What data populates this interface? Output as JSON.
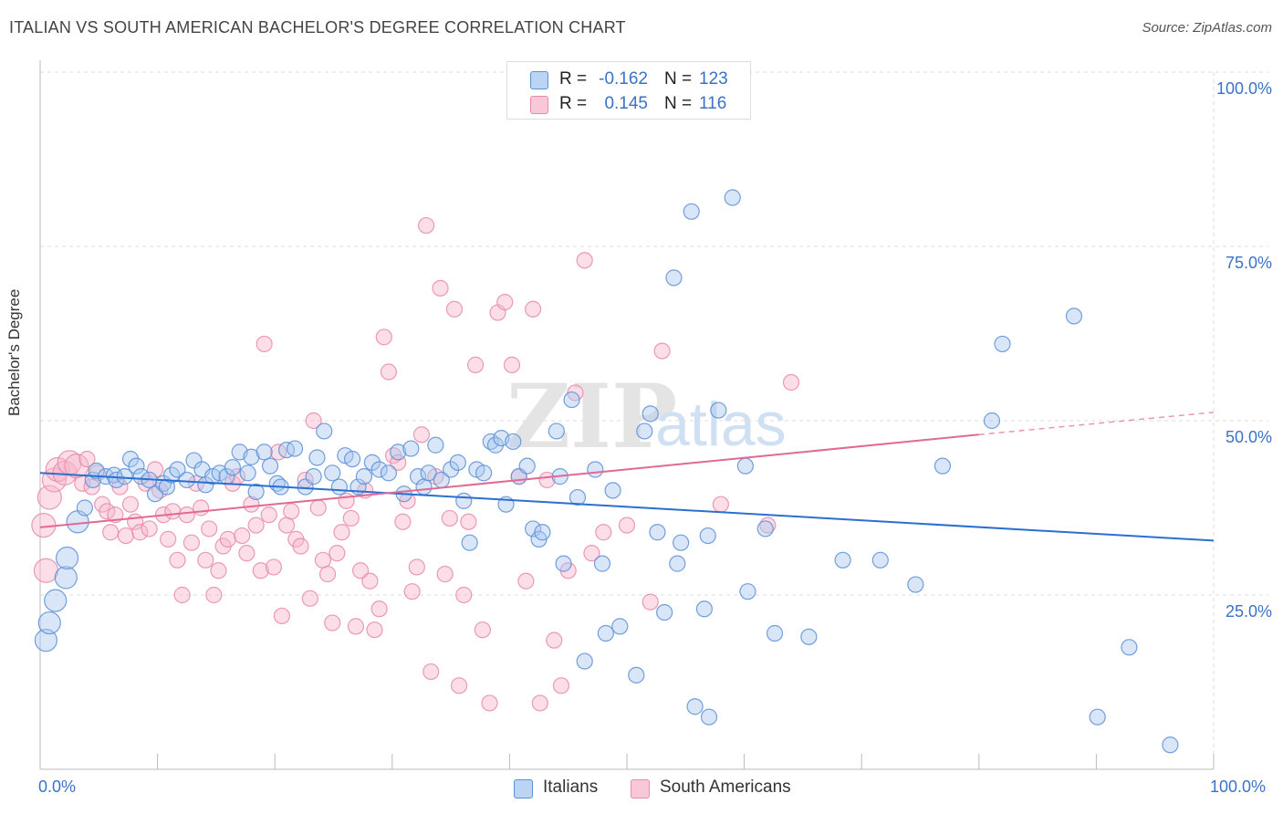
{
  "title": "ITALIAN VS SOUTH AMERICAN BACHELOR'S DEGREE CORRELATION CHART",
  "source": "Source: ZipAtlas.com",
  "watermark": {
    "zip": "ZIP",
    "atlas": "atlas"
  },
  "colors": {
    "italians_fill": "#a8c8f0",
    "italians_stroke": "#5b8fd6",
    "italians_line": "#2b6fd0",
    "south_fill": "#f6b6cb",
    "south_stroke": "#e88aa8",
    "south_line": "#e06a94",
    "tick_text": "#3a72c9",
    "grid": "#dddddd"
  },
  "legend_top": {
    "rows": [
      {
        "r_label": "R =",
        "r_value": "-0.162",
        "n_label": "N =",
        "n_value": "123"
      },
      {
        "r_label": "R =",
        "r_value": "0.145",
        "n_label": "N =",
        "n_value": "116"
      }
    ]
  },
  "legend_bottom": {
    "italians": "Italians",
    "south_americans": "South Americans"
  },
  "axis": {
    "ylabel": "Bachelor's Degree",
    "y_ticks": [
      "100.0%",
      "75.0%",
      "50.0%",
      "25.0%"
    ],
    "x_ticks": [
      "0.0%",
      "100.0%"
    ]
  },
  "chart_data": {
    "type": "scatter",
    "xlabel": "",
    "ylabel": "Bachelor's Degree",
    "xlim": [
      0,
      100
    ],
    "ylim": [
      0,
      100
    ],
    "grid": true,
    "legend_placement": "top-center",
    "series": [
      {
        "name": "Italians",
        "r": -0.162,
        "n": 123,
        "trend": {
          "x": [
            0,
            100
          ],
          "y": [
            42.5,
            32.8
          ]
        },
        "points": [
          [
            0.5,
            18.5
          ],
          [
            0.8,
            21
          ],
          [
            1.3,
            24.2
          ],
          [
            2.2,
            27.5
          ],
          [
            2.3,
            30.3
          ],
          [
            3.2,
            35.5
          ],
          [
            3.8,
            37.5
          ],
          [
            4.5,
            41.5
          ],
          [
            4.8,
            42.8
          ],
          [
            5.6,
            42
          ],
          [
            6.3,
            42.2
          ],
          [
            6.5,
            41.5
          ],
          [
            7.2,
            42
          ],
          [
            7.7,
            44.5
          ],
          [
            8.2,
            43.5
          ],
          [
            8.6,
            42
          ],
          [
            9.3,
            41.5
          ],
          [
            9.8,
            39.5
          ],
          [
            10.5,
            41
          ],
          [
            10.8,
            40.5
          ],
          [
            11.2,
            42.2
          ],
          [
            11.7,
            43
          ],
          [
            12.5,
            41.5
          ],
          [
            13.1,
            44.3
          ],
          [
            13.8,
            43
          ],
          [
            14.1,
            40.8
          ],
          [
            14.7,
            42
          ],
          [
            15.3,
            42.5
          ],
          [
            15.9,
            42
          ],
          [
            16.4,
            43.3
          ],
          [
            17,
            45.5
          ],
          [
            17.7,
            42.5
          ],
          [
            18,
            44.8
          ],
          [
            18.4,
            39.8
          ],
          [
            19.1,
            45.5
          ],
          [
            19.6,
            43.5
          ],
          [
            20.2,
            41
          ],
          [
            20.5,
            40.5
          ],
          [
            21,
            45.8
          ],
          [
            21.7,
            46
          ],
          [
            22.6,
            40.5
          ],
          [
            23.3,
            42
          ],
          [
            23.6,
            44.7
          ],
          [
            24.2,
            48.5
          ],
          [
            24.9,
            42.5
          ],
          [
            25.5,
            40.5
          ],
          [
            26,
            45
          ],
          [
            26.6,
            44.5
          ],
          [
            27.1,
            40.5
          ],
          [
            27.6,
            42
          ],
          [
            28.3,
            44
          ],
          [
            28.9,
            43
          ],
          [
            29.7,
            42.5
          ],
          [
            30.5,
            45.5
          ],
          [
            31,
            39.5
          ],
          [
            31.6,
            46
          ],
          [
            32.2,
            42
          ],
          [
            32.7,
            40.5
          ],
          [
            33.1,
            42.5
          ],
          [
            33.7,
            46.5
          ],
          [
            34.2,
            41.5
          ],
          [
            35,
            43
          ],
          [
            35.6,
            44
          ],
          [
            36.1,
            38.5
          ],
          [
            36.6,
            32.5
          ],
          [
            37.2,
            43
          ],
          [
            37.8,
            42.5
          ],
          [
            38.4,
            47
          ],
          [
            38.8,
            46.5
          ],
          [
            39.3,
            47.5
          ],
          [
            39.7,
            38
          ],
          [
            40.3,
            47
          ],
          [
            40.8,
            42
          ],
          [
            41.5,
            43.5
          ],
          [
            42,
            34.5
          ],
          [
            42.5,
            33
          ],
          [
            42.8,
            34
          ],
          [
            44,
            48.5
          ],
          [
            44.3,
            42
          ],
          [
            44.6,
            29.5
          ],
          [
            45.3,
            53
          ],
          [
            45.8,
            39
          ],
          [
            46.4,
            15.5
          ],
          [
            47.3,
            43
          ],
          [
            47.9,
            29.5
          ],
          [
            48.2,
            19.5
          ],
          [
            48.8,
            40
          ],
          [
            49.4,
            20.5
          ],
          [
            50.8,
            13.5
          ],
          [
            51.5,
            48.5
          ],
          [
            52,
            51
          ],
          [
            52.6,
            34
          ],
          [
            53.2,
            22.5
          ],
          [
            54,
            70.5
          ],
          [
            54.3,
            29.5
          ],
          [
            54.6,
            32.5
          ],
          [
            55.5,
            80
          ],
          [
            55.8,
            9
          ],
          [
            56.6,
            23
          ],
          [
            56.9,
            33.5
          ],
          [
            57,
            7.5
          ],
          [
            57.8,
            51.5
          ],
          [
            59,
            82
          ],
          [
            60.1,
            43.5
          ],
          [
            60.3,
            25.5
          ],
          [
            61.8,
            34.5
          ],
          [
            62.6,
            19.5
          ],
          [
            65.5,
            19
          ],
          [
            68.4,
            30
          ],
          [
            71.6,
            30
          ],
          [
            74.6,
            26.5
          ],
          [
            76.9,
            43.5
          ],
          [
            81.1,
            50
          ],
          [
            82,
            61
          ],
          [
            88.1,
            65
          ],
          [
            90.1,
            7.5
          ],
          [
            92.8,
            17.5
          ],
          [
            96.3,
            3.5
          ]
        ]
      },
      {
        "name": "South Americans",
        "r": 0.145,
        "n": 116,
        "trend": {
          "x": [
            0,
            80
          ],
          "y": [
            34.7,
            48
          ]
        },
        "trend_dashed": {
          "x": [
            80,
            100
          ],
          "y": [
            48,
            51.2
          ]
        },
        "points": [
          [
            0.3,
            35
          ],
          [
            0.5,
            28.5
          ],
          [
            0.8,
            39
          ],
          [
            1.2,
            41.5
          ],
          [
            1.5,
            43
          ],
          [
            2.1,
            42.5
          ],
          [
            2.5,
            44
          ],
          [
            3.1,
            43.5
          ],
          [
            3.6,
            41
          ],
          [
            4,
            44.5
          ],
          [
            4.4,
            40.5
          ],
          [
            4.9,
            42.5
          ],
          [
            5.3,
            38
          ],
          [
            5.7,
            37
          ],
          [
            6,
            34
          ],
          [
            6.4,
            36.5
          ],
          [
            6.8,
            40.5
          ],
          [
            7.3,
            33.5
          ],
          [
            7.7,
            38
          ],
          [
            8.1,
            35.5
          ],
          [
            8.5,
            34
          ],
          [
            9,
            41
          ],
          [
            9.3,
            34.5
          ],
          [
            9.8,
            43
          ],
          [
            10.2,
            40
          ],
          [
            10.5,
            36.5
          ],
          [
            10.9,
            33
          ],
          [
            11.3,
            37
          ],
          [
            11.7,
            30
          ],
          [
            12.1,
            25
          ],
          [
            12.5,
            36.5
          ],
          [
            12.9,
            32.5
          ],
          [
            13.3,
            41
          ],
          [
            13.7,
            37.5
          ],
          [
            14.1,
            30
          ],
          [
            14.4,
            34.5
          ],
          [
            14.8,
            25
          ],
          [
            15.2,
            28.5
          ],
          [
            15.6,
            32
          ],
          [
            16,
            33
          ],
          [
            16.4,
            41
          ],
          [
            16.8,
            42
          ],
          [
            17.2,
            33.5
          ],
          [
            17.6,
            31
          ],
          [
            18,
            38
          ],
          [
            18.4,
            35
          ],
          [
            18.8,
            28.5
          ],
          [
            19.1,
            61
          ],
          [
            19.5,
            36.5
          ],
          [
            19.9,
            29
          ],
          [
            20.3,
            45.5
          ],
          [
            20.6,
            22
          ],
          [
            21,
            35
          ],
          [
            21.4,
            37
          ],
          [
            21.8,
            33
          ],
          [
            22.2,
            32
          ],
          [
            22.6,
            41.5
          ],
          [
            23,
            24.5
          ],
          [
            23.3,
            50
          ],
          [
            23.7,
            37.5
          ],
          [
            24.1,
            30
          ],
          [
            24.5,
            28
          ],
          [
            24.9,
            21
          ],
          [
            25.3,
            31
          ],
          [
            25.7,
            34
          ],
          [
            26.1,
            38.5
          ],
          [
            26.5,
            36
          ],
          [
            26.9,
            20.5
          ],
          [
            27.3,
            28.5
          ],
          [
            27.7,
            40
          ],
          [
            28.1,
            27
          ],
          [
            28.5,
            20
          ],
          [
            28.9,
            23
          ],
          [
            29.3,
            62
          ],
          [
            29.7,
            57
          ],
          [
            30.1,
            45
          ],
          [
            30.5,
            44
          ],
          [
            30.9,
            35.5
          ],
          [
            31.3,
            38.5
          ],
          [
            31.7,
            25.5
          ],
          [
            32.1,
            29
          ],
          [
            32.5,
            48
          ],
          [
            32.9,
            78
          ],
          [
            33.3,
            14
          ],
          [
            33.7,
            42
          ],
          [
            34.1,
            69
          ],
          [
            34.5,
            28
          ],
          [
            34.9,
            36
          ],
          [
            35.3,
            66
          ],
          [
            35.7,
            12
          ],
          [
            36.1,
            25
          ],
          [
            36.5,
            35.5
          ],
          [
            37.1,
            58
          ],
          [
            37.7,
            20
          ],
          [
            38.3,
            9.5
          ],
          [
            39,
            65.5
          ],
          [
            39.6,
            67
          ],
          [
            40.2,
            58
          ],
          [
            40.8,
            42
          ],
          [
            41.4,
            27
          ],
          [
            42,
            66
          ],
          [
            42.6,
            9.5
          ],
          [
            43.2,
            41.5
          ],
          [
            43.8,
            18.5
          ],
          [
            44.4,
            12
          ],
          [
            45,
            28.5
          ],
          [
            45.6,
            54
          ],
          [
            46.4,
            73
          ],
          [
            47,
            31
          ],
          [
            48,
            34
          ],
          [
            50,
            35
          ],
          [
            52,
            24
          ],
          [
            53,
            60
          ],
          [
            58,
            38
          ],
          [
            62,
            35
          ],
          [
            64,
            55.5
          ]
        ]
      }
    ]
  }
}
